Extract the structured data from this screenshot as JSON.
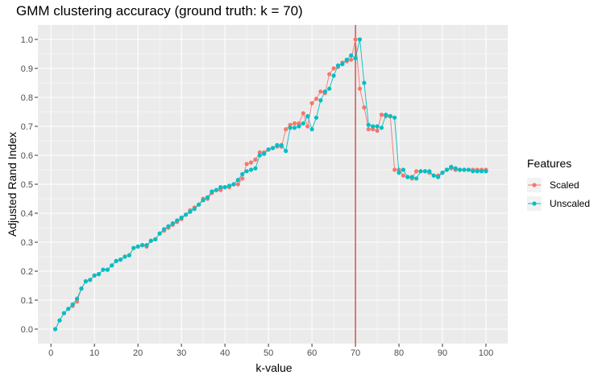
{
  "chart_data": {
    "type": "line",
    "title": "GMM clustering accuracy (ground truth: k = 70)",
    "xlabel": "k-value",
    "ylabel": "Adjusted Rand Index",
    "xlim": [
      -3,
      105
    ],
    "ylim": [
      -0.05,
      1.05
    ],
    "x_ticks": [
      0,
      10,
      20,
      30,
      40,
      50,
      60,
      70,
      80,
      90,
      100
    ],
    "y_ticks": [
      0.0,
      0.1,
      0.2,
      0.3,
      0.4,
      0.5,
      0.6,
      0.7,
      0.8,
      0.9,
      1.0
    ],
    "y_tick_labels": [
      "0.0",
      "0.1",
      "0.2",
      "0.3",
      "0.4",
      "0.5",
      "0.6",
      "0.7",
      "0.8",
      "0.9",
      "1.0"
    ],
    "reference_line": {
      "x": 70,
      "color": "#cc0000"
    },
    "legend": {
      "title": "Features",
      "position": "right"
    },
    "x": [
      1,
      2,
      3,
      4,
      5,
      6,
      7,
      8,
      9,
      10,
      11,
      12,
      13,
      14,
      15,
      16,
      17,
      18,
      19,
      20,
      21,
      22,
      23,
      24,
      25,
      26,
      27,
      28,
      29,
      30,
      31,
      32,
      33,
      34,
      35,
      36,
      37,
      38,
      39,
      40,
      41,
      42,
      43,
      44,
      45,
      46,
      47,
      48,
      49,
      50,
      51,
      52,
      53,
      54,
      55,
      56,
      57,
      58,
      59,
      60,
      61,
      62,
      63,
      64,
      65,
      66,
      67,
      68,
      69,
      70,
      71,
      72,
      73,
      74,
      75,
      76,
      77,
      78,
      79,
      80,
      81,
      82,
      83,
      84,
      85,
      86,
      87,
      88,
      89,
      90,
      91,
      92,
      93,
      94,
      95,
      96,
      97,
      98,
      99,
      100
    ],
    "series": [
      {
        "name": "Scaled",
        "color": "#f8766d",
        "values": [
          0.0,
          0.03,
          0.055,
          0.07,
          0.08,
          0.095,
          0.14,
          0.165,
          0.17,
          0.185,
          0.19,
          0.205,
          0.205,
          0.22,
          0.235,
          0.24,
          0.25,
          0.255,
          0.28,
          0.285,
          0.29,
          0.285,
          0.305,
          0.31,
          0.33,
          0.34,
          0.35,
          0.36,
          0.37,
          0.38,
          0.395,
          0.41,
          0.42,
          0.43,
          0.45,
          0.45,
          0.47,
          0.48,
          0.48,
          0.49,
          0.49,
          0.5,
          0.5,
          0.52,
          0.57,
          0.575,
          0.585,
          0.61,
          0.61,
          0.62,
          0.625,
          0.63,
          0.63,
          0.69,
          0.705,
          0.71,
          0.71,
          0.745,
          0.7,
          0.78,
          0.795,
          0.82,
          0.815,
          0.88,
          0.9,
          0.905,
          0.92,
          0.925,
          0.93,
          1.0,
          0.83,
          0.765,
          0.69,
          0.69,
          0.685,
          0.74,
          0.735,
          0.735,
          0.55,
          0.55,
          0.53,
          0.525,
          0.52,
          0.545,
          0.545,
          0.545,
          0.54,
          0.53,
          0.53,
          0.54,
          0.55,
          0.555,
          0.55,
          0.55,
          0.55,
          0.55,
          0.55,
          0.55,
          0.55,
          0.55
        ]
      },
      {
        "name": "Unscaled",
        "color": "#00bfc4",
        "values": [
          0.0,
          0.03,
          0.055,
          0.07,
          0.085,
          0.105,
          0.14,
          0.165,
          0.17,
          0.185,
          0.19,
          0.205,
          0.205,
          0.22,
          0.235,
          0.24,
          0.25,
          0.255,
          0.28,
          0.285,
          0.29,
          0.29,
          0.305,
          0.31,
          0.33,
          0.345,
          0.355,
          0.365,
          0.375,
          0.385,
          0.395,
          0.405,
          0.415,
          0.43,
          0.445,
          0.455,
          0.475,
          0.48,
          0.49,
          0.49,
          0.495,
          0.5,
          0.515,
          0.535,
          0.545,
          0.55,
          0.555,
          0.6,
          0.605,
          0.62,
          0.625,
          0.635,
          0.635,
          0.615,
          0.695,
          0.695,
          0.7,
          0.71,
          0.735,
          0.69,
          0.73,
          0.79,
          0.82,
          0.83,
          0.875,
          0.91,
          0.915,
          0.93,
          0.945,
          0.935,
          1.0,
          0.85,
          0.705,
          0.7,
          0.7,
          0.695,
          0.74,
          0.735,
          0.73,
          0.54,
          0.55,
          0.525,
          0.525,
          0.52,
          0.545,
          0.545,
          0.545,
          0.53,
          0.525,
          0.54,
          0.55,
          0.56,
          0.555,
          0.55,
          0.55,
          0.55,
          0.545,
          0.545,
          0.545,
          0.545
        ]
      }
    ]
  }
}
